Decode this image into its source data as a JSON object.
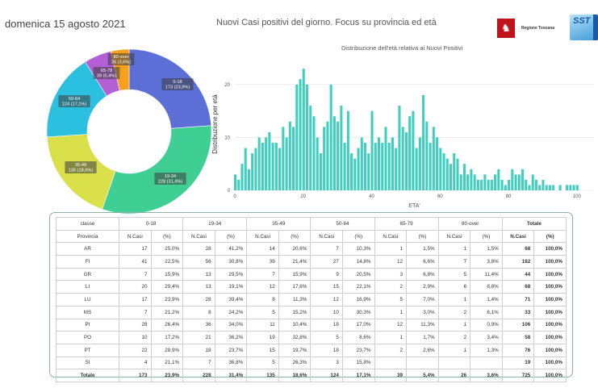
{
  "header": {
    "date": "domenica 15 agosto 2021",
    "title": "Nuovi Casi positivi del giorno. Focus su provincia ed età",
    "logo_toscana": "Regione Toscana",
    "logo_sst": "SST"
  },
  "colors": {
    "pie": [
      "#5b6fd6",
      "#3fcf95",
      "#d9e04a",
      "#2bbfe0",
      "#b35fd6",
      "#f5a11c"
    ],
    "histogram": "#3fcfbf"
  },
  "chart_data": [
    {
      "type": "pie",
      "donut": true,
      "categories": [
        "0-18",
        "19-34",
        "35-49",
        "50-64",
        "65-79",
        "80-over"
      ],
      "values": [
        173,
        228,
        135,
        124,
        39,
        26
      ],
      "labels": [
        "0-18\n173 (23,9%)",
        "19-34\n228 (31,4%)",
        "35-49\n135 (18,6%)",
        "50-64\n124 (17,1%)",
        "65-79\n39 (5,4%)",
        "80-over\n26 (3,6%)"
      ]
    },
    {
      "type": "bar",
      "title": "Distribuzione dell'età relativa ai Nuovi Positivi",
      "xlabel": "ETA'",
      "ylabel": "Distribuzione per età",
      "xlim": [
        0,
        105
      ],
      "ylim": [
        0,
        25
      ],
      "xticks": [
        0,
        20,
        40,
        60,
        80,
        100
      ],
      "yticks": [
        0,
        10,
        20
      ],
      "x": [
        0,
        1,
        2,
        3,
        4,
        5,
        6,
        7,
        8,
        9,
        10,
        11,
        12,
        13,
        14,
        15,
        16,
        17,
        18,
        19,
        20,
        21,
        22,
        23,
        24,
        25,
        26,
        27,
        28,
        29,
        30,
        31,
        32,
        33,
        34,
        35,
        36,
        37,
        38,
        39,
        40,
        41,
        42,
        43,
        44,
        45,
        46,
        47,
        48,
        49,
        50,
        51,
        52,
        53,
        54,
        55,
        56,
        57,
        58,
        59,
        60,
        61,
        62,
        63,
        64,
        65,
        66,
        67,
        68,
        69,
        70,
        71,
        72,
        73,
        74,
        75,
        76,
        77,
        78,
        79,
        80,
        81,
        82,
        83,
        84,
        85,
        86,
        87,
        88,
        89,
        90,
        91,
        92,
        93,
        94,
        95,
        96,
        97,
        98,
        99,
        100,
        101,
        102,
        103,
        104
      ],
      "values": [
        3,
        2,
        5,
        8,
        4,
        7,
        8,
        10,
        9,
        10,
        11,
        9,
        9,
        8,
        12,
        10,
        13,
        12,
        20,
        21,
        23,
        20,
        16,
        14,
        10,
        7,
        12,
        13,
        20,
        14,
        13,
        16,
        9,
        15,
        7,
        6,
        8,
        10,
        9,
        7,
        15,
        9,
        10,
        9,
        12,
        9,
        10,
        8,
        16,
        12,
        11,
        14,
        15,
        8,
        10,
        18,
        13,
        9,
        12,
        10,
        8,
        7,
        6,
        5,
        7,
        6,
        3,
        5,
        3,
        4,
        3,
        2,
        2,
        3,
        2,
        2,
        3,
        4,
        2,
        1,
        2,
        4,
        3,
        3,
        4,
        2,
        1,
        3,
        2,
        1,
        2,
        1,
        1,
        1,
        0,
        1,
        0,
        1,
        1,
        1,
        1,
        0,
        0,
        0,
        0
      ]
    }
  ],
  "table": {
    "group_headers": [
      "classe",
      "0-18",
      "19-34",
      "35-49",
      "50-64",
      "65-79",
      "80-over",
      "Totale"
    ],
    "sub_headers": [
      "Provincia",
      "N.Casi",
      "(%)",
      "N.Casi",
      "(%)",
      "N.Casi",
      "(%)",
      "N.Casi",
      "(%)",
      "N.Casi",
      "(%)",
      "N.Casi",
      "(%)",
      "N.Casi",
      "(%)"
    ],
    "rows": [
      [
        "AR",
        "17",
        "25,0%",
        "28",
        "41,2%",
        "14",
        "20,6%",
        "7",
        "10,3%",
        "1",
        "1,5%",
        "1",
        "1,5%",
        "68",
        "100,0%"
      ],
      [
        "FI",
        "41",
        "22,5%",
        "56",
        "30,8%",
        "39",
        "21,4%",
        "27",
        "14,8%",
        "12",
        "6,6%",
        "7",
        "3,8%",
        "182",
        "100,0%"
      ],
      [
        "GR",
        "7",
        "15,9%",
        "13",
        "29,5%",
        "7",
        "15,9%",
        "9",
        "20,5%",
        "3",
        "6,8%",
        "5",
        "11,4%",
        "44",
        "100,0%"
      ],
      [
        "LI",
        "20",
        "29,4%",
        "13",
        "19,1%",
        "12",
        "17,6%",
        "15",
        "22,1%",
        "2",
        "2,9%",
        "6",
        "8,8%",
        "68",
        "100,0%"
      ],
      [
        "LU",
        "17",
        "23,9%",
        "28",
        "39,4%",
        "8",
        "11,3%",
        "12",
        "16,9%",
        "5",
        "7,0%",
        "1",
        "1,4%",
        "71",
        "100,0%"
      ],
      [
        "MS",
        "7",
        "21,2%",
        "8",
        "24,2%",
        "5",
        "15,2%",
        "10",
        "30,3%",
        "1",
        "3,0%",
        "2",
        "6,1%",
        "33",
        "100,0%"
      ],
      [
        "PI",
        "28",
        "26,4%",
        "36",
        "34,0%",
        "11",
        "10,4%",
        "18",
        "17,0%",
        "12",
        "11,3%",
        "1",
        "0,9%",
        "106",
        "100,0%"
      ],
      [
        "PO",
        "10",
        "17,2%",
        "21",
        "36,2%",
        "19",
        "32,8%",
        "5",
        "8,6%",
        "1",
        "1,7%",
        "2",
        "3,4%",
        "58",
        "100,0%"
      ],
      [
        "PT",
        "22",
        "28,9%",
        "18",
        "23,7%",
        "15",
        "19,7%",
        "18",
        "23,7%",
        "2",
        "2,6%",
        "1",
        "1,3%",
        "76",
        "100,0%"
      ],
      [
        "SI",
        "4",
        "21,1%",
        "7",
        "36,8%",
        "5",
        "26,3%",
        "3",
        "15,8%",
        "",
        "",
        "",
        "",
        "19",
        "100,0%"
      ]
    ],
    "total_row": [
      "Totale",
      "173",
      "23,9%",
      "228",
      "31,4%",
      "135",
      "18,6%",
      "124",
      "17,1%",
      "39",
      "5,4%",
      "26",
      "3,6%",
      "725",
      "100,0%"
    ]
  }
}
